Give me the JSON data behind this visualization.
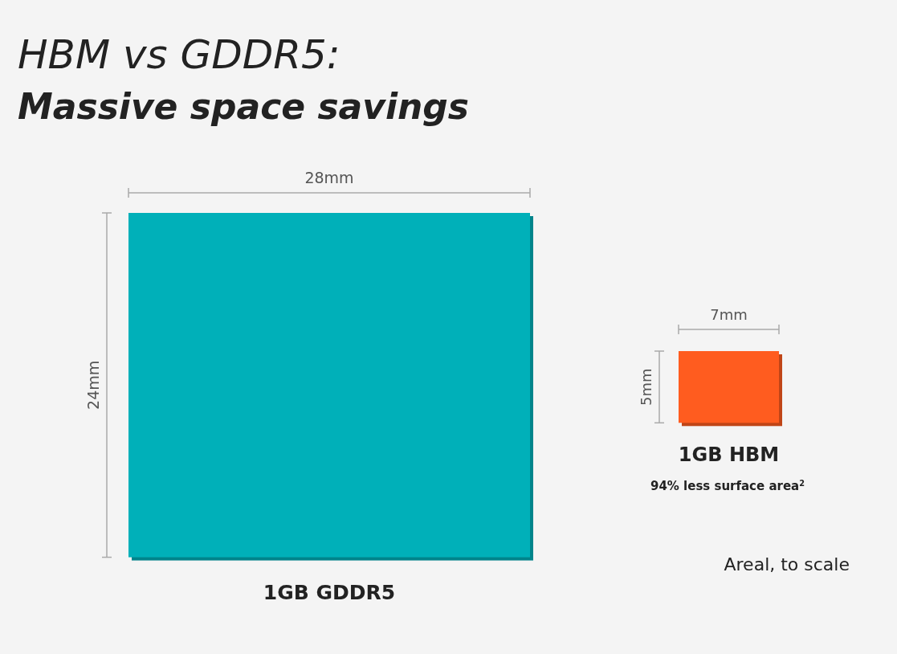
{
  "chart_data": {
    "type": "other",
    "title": "HBM vs GDDR5:",
    "subtitle": "Massive space savings",
    "categories": [
      "1GB GDDR5",
      "1GB HBM"
    ],
    "colors": [
      "#00b0b9",
      "#ff5c1f"
    ],
    "series": [
      {
        "values": [
          28,
          7
        ],
        "value_labels": [
          "28mm",
          "7mm"
        ]
      },
      {
        "values": [
          24,
          5
        ],
        "value_labels": [
          "24mm",
          "5mm"
        ]
      }
    ],
    "annotations": [
      "94% less surface area$^{2}$",
      "Areal, to scale"
    ]
  }
}
